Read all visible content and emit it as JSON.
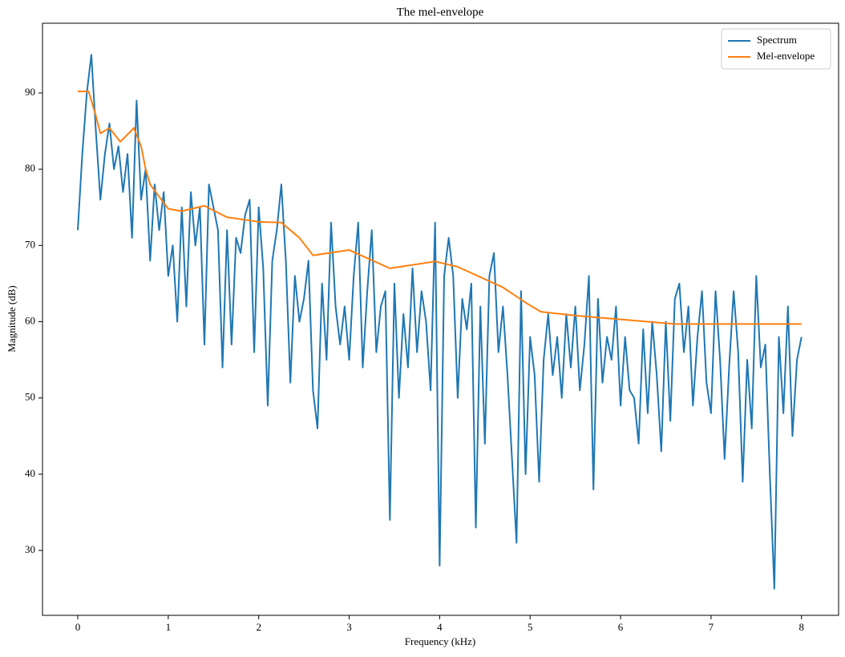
{
  "chart_data": {
    "type": "line",
    "title": "The mel-envelope",
    "xlabel": "Frequency (kHz)",
    "ylabel": "Magnitude (dB)",
    "xlim": [
      -0.39,
      8.41
    ],
    "ylim": [
      21.49,
      99.14
    ],
    "xticks": [
      0,
      1,
      2,
      3,
      4,
      5,
      6,
      7,
      8
    ],
    "yticks": [
      30,
      40,
      50,
      60,
      70,
      80,
      90
    ],
    "legend": "upper right",
    "grid": false,
    "series": [
      {
        "name": "Spectrum",
        "color": "#1f77b4",
        "x": [
          0,
          0.05,
          0.1,
          0.15,
          0.2,
          0.25,
          0.3,
          0.35,
          0.4,
          0.45,
          0.5,
          0.55,
          0.6,
          0.65,
          0.7,
          0.75,
          0.8,
          0.85,
          0.9,
          0.95,
          1,
          1.05,
          1.1,
          1.15,
          1.2,
          1.25,
          1.3,
          1.35,
          1.4,
          1.45,
          1.5,
          1.55,
          1.6,
          1.65,
          1.7,
          1.75,
          1.8,
          1.85,
          1.9,
          1.95,
          2,
          2.05,
          2.1,
          2.15,
          2.2,
          2.25,
          2.3,
          2.35,
          2.4,
          2.45,
          2.5,
          2.55,
          2.6,
          2.65,
          2.7,
          2.75,
          2.8,
          2.85,
          2.9,
          2.95,
          3,
          3.05,
          3.1,
          3.15,
          3.2,
          3.25,
          3.3,
          3.35,
          3.4,
          3.45,
          3.5,
          3.55,
          3.6,
          3.65,
          3.7,
          3.75,
          3.8,
          3.85,
          3.9,
          3.95,
          4,
          4.05,
          4.1,
          4.15,
          4.2,
          4.25,
          4.3,
          4.35,
          4.4,
          4.45,
          4.5,
          4.55,
          4.6,
          4.65,
          4.7,
          4.75,
          4.8,
          4.85,
          4.9,
          4.95,
          5,
          5.05,
          5.1,
          5.15,
          5.2,
          5.25,
          5.3,
          5.35,
          5.4,
          5.45,
          5.5,
          5.55,
          5.6,
          5.65,
          5.7,
          5.75,
          5.8,
          5.85,
          5.9,
          5.95,
          6,
          6.05,
          6.1,
          6.15,
          6.2,
          6.25,
          6.3,
          6.35,
          6.4,
          6.45,
          6.5,
          6.55,
          6.6,
          6.65,
          6.7,
          6.75,
          6.8,
          6.85,
          6.9,
          6.95,
          7,
          7.05,
          7.1,
          7.15,
          7.2,
          7.25,
          7.3,
          7.35,
          7.4,
          7.45,
          7.5,
          7.55,
          7.6,
          7.65,
          7.7,
          7.75,
          7.8,
          7.85,
          7.9,
          7.95,
          8
        ],
        "values": [
          72,
          82,
          90,
          95,
          85,
          76,
          82,
          86,
          80,
          83,
          77,
          82,
          71,
          89,
          76,
          80,
          68,
          78,
          72,
          77,
          66,
          70,
          60,
          75,
          62,
          77,
          70,
          75,
          57,
          78,
          75,
          72,
          54,
          72,
          57,
          71,
          69,
          74,
          76,
          56,
          75,
          67,
          49,
          68,
          72,
          78,
          68,
          52,
          66,
          60,
          63,
          68,
          51,
          46,
          65,
          55,
          73,
          62,
          57,
          62,
          55,
          66,
          73,
          54,
          64,
          72,
          56,
          62,
          64,
          34,
          65,
          50,
          61,
          54,
          67,
          56,
          64,
          60,
          51,
          73,
          28,
          66,
          71,
          66,
          50,
          63,
          59,
          65,
          33,
          62,
          44,
          66,
          69,
          56,
          62,
          53,
          42,
          31,
          64,
          40,
          58,
          53,
          39,
          55,
          61,
          53,
          58,
          50,
          61,
          54,
          62,
          51,
          57,
          66,
          38,
          63,
          52,
          58,
          55,
          62,
          49,
          58,
          51,
          50,
          44,
          59,
          48,
          60,
          53,
          43,
          60,
          47,
          63,
          65,
          56,
          62,
          49,
          58,
          64,
          52,
          48,
          64,
          55,
          42,
          54,
          64,
          56,
          39,
          55,
          46,
          66,
          54,
          57,
          40,
          25,
          58,
          48,
          62,
          45,
          55,
          58
        ]
      },
      {
        "name": "Mel-envelope",
        "color": "#ff7f0e",
        "x": [
          0,
          0.12,
          0.2,
          0.25,
          0.35,
          0.47,
          0.62,
          0.7,
          0.75,
          0.8,
          1,
          1.15,
          1.4,
          1.65,
          2,
          2.25,
          2.45,
          2.6,
          3,
          3.45,
          3.95,
          4.2,
          4.7,
          4.95,
          5.12,
          5.5,
          6,
          6.6,
          7.2,
          8
        ],
        "values": [
          90.2,
          90.2,
          87,
          84.7,
          85.4,
          83.6,
          85.4,
          83,
          80,
          78,
          74.8,
          74.5,
          75.2,
          73.7,
          73.1,
          73,
          71,
          68.7,
          69.4,
          67,
          67.9,
          67.2,
          64.5,
          62.5,
          61.3,
          60.8,
          60.3,
          59.7,
          59.7,
          59.7
        ]
      }
    ]
  }
}
